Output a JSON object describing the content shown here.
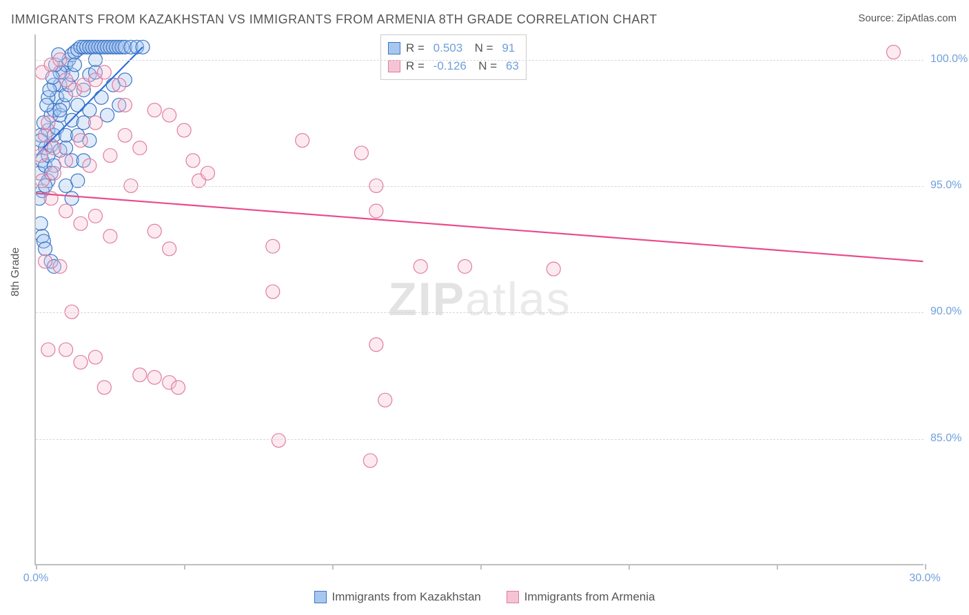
{
  "title": "IMMIGRANTS FROM KAZAKHSTAN VS IMMIGRANTS FROM ARMENIA 8TH GRADE CORRELATION CHART",
  "source_label": "Source:",
  "source_value": "ZipAtlas.com",
  "ylabel": "8th Grade",
  "watermark_bold": "ZIP",
  "watermark_light": "atlas",
  "chart": {
    "type": "scatter",
    "xlim": [
      0,
      30
    ],
    "ylim": [
      80,
      101
    ],
    "xtick_positions": [
      0,
      5,
      10,
      15,
      20,
      25,
      30
    ],
    "xtick_labels": [
      "0.0%",
      "",
      "",
      "",
      "",
      "",
      "30.0%"
    ],
    "ytick_positions": [
      85,
      90,
      95,
      100
    ],
    "ytick_labels": [
      "85.0%",
      "90.0%",
      "95.0%",
      "100.0%"
    ],
    "grid_color": "#d7d7d7",
    "axis_color": "#bfbfbf",
    "background_color": "#ffffff",
    "marker_radius": 10,
    "marker_stroke_width": 1.2,
    "marker_opacity": 0.35,
    "trend_line_width": 2.2
  },
  "series": [
    {
      "id": "kazakhstan",
      "label": "Immigrants from Kazakhstan",
      "fill_color": "#a7c7f0",
      "stroke_color": "#3a75c4",
      "line_color": "#2e6fd6",
      "R": "0.503",
      "N": "91",
      "trend": {
        "x1": 0,
        "y1": 96.2,
        "x2": 3.6,
        "y2": 100.5
      },
      "points": [
        [
          0.1,
          95.5
        ],
        [
          0.2,
          96.0
        ],
        [
          0.3,
          96.5
        ],
        [
          0.15,
          97.0
        ],
        [
          0.4,
          97.2
        ],
        [
          0.5,
          97.8
        ],
        [
          0.6,
          98.0
        ],
        [
          0.7,
          98.5
        ],
        [
          0.8,
          99.0
        ],
        [
          0.9,
          99.5
        ],
        [
          1.0,
          99.8
        ],
        [
          1.1,
          100.0
        ],
        [
          1.2,
          100.2
        ],
        [
          1.3,
          100.3
        ],
        [
          1.4,
          100.4
        ],
        [
          1.5,
          100.5
        ],
        [
          1.6,
          100.5
        ],
        [
          1.7,
          100.5
        ],
        [
          1.8,
          100.5
        ],
        [
          1.9,
          100.5
        ],
        [
          2.0,
          100.5
        ],
        [
          2.1,
          100.5
        ],
        [
          2.2,
          100.5
        ],
        [
          2.3,
          100.5
        ],
        [
          2.4,
          100.5
        ],
        [
          2.5,
          100.5
        ],
        [
          2.6,
          100.5
        ],
        [
          2.7,
          100.5
        ],
        [
          2.8,
          100.5
        ],
        [
          2.9,
          100.5
        ],
        [
          3.0,
          100.5
        ],
        [
          3.2,
          100.5
        ],
        [
          3.4,
          100.5
        ],
        [
          3.6,
          100.5
        ],
        [
          0.3,
          95.8
        ],
        [
          0.4,
          96.2
        ],
        [
          0.5,
          96.6
        ],
        [
          0.6,
          97.0
        ],
        [
          0.7,
          97.3
        ],
        [
          0.8,
          97.8
        ],
        [
          0.9,
          98.2
        ],
        [
          1.0,
          98.6
        ],
        [
          1.1,
          99.0
        ],
        [
          1.2,
          99.4
        ],
        [
          1.3,
          99.8
        ],
        [
          0.2,
          94.8
        ],
        [
          0.4,
          95.2
        ],
        [
          0.6,
          95.8
        ],
        [
          0.8,
          96.4
        ],
        [
          1.0,
          97.0
        ],
        [
          1.2,
          97.6
        ],
        [
          1.4,
          98.2
        ],
        [
          1.6,
          98.8
        ],
        [
          1.8,
          99.4
        ],
        [
          2.0,
          100.0
        ],
        [
          0.1,
          94.5
        ],
        [
          0.3,
          95.0
        ],
        [
          0.5,
          95.5
        ],
        [
          0.15,
          93.5
        ],
        [
          0.2,
          93.0
        ],
        [
          0.25,
          92.8
        ],
        [
          0.3,
          92.5
        ],
        [
          0.5,
          92.0
        ],
        [
          0.6,
          91.8
        ],
        [
          0.8,
          98.0
        ],
        [
          1.0,
          96.5
        ],
        [
          1.2,
          96.0
        ],
        [
          1.4,
          97.0
        ],
        [
          1.6,
          97.5
        ],
        [
          1.8,
          98.0
        ],
        [
          2.0,
          99.5
        ],
        [
          2.2,
          98.5
        ],
        [
          2.4,
          97.8
        ],
        [
          2.6,
          99.0
        ],
        [
          2.8,
          98.2
        ],
        [
          3.0,
          99.2
        ],
        [
          0.4,
          98.5
        ],
        [
          0.6,
          99.0
        ],
        [
          0.8,
          99.5
        ],
        [
          1.0,
          95.0
        ],
        [
          1.2,
          94.5
        ],
        [
          1.4,
          95.2
        ],
        [
          1.6,
          96.0
        ],
        [
          1.8,
          96.8
        ],
        [
          0.15,
          96.8
        ],
        [
          0.25,
          97.5
        ],
        [
          0.35,
          98.2
        ],
        [
          0.45,
          98.8
        ],
        [
          0.55,
          99.3
        ],
        [
          0.65,
          99.8
        ],
        [
          0.75,
          100.2
        ]
      ]
    },
    {
      "id": "armenia",
      "label": "Immigrants from Armenia",
      "fill_color": "#f5c4d4",
      "stroke_color": "#e07ba0",
      "line_color": "#e84b8a",
      "R": "-0.126",
      "N": "63",
      "trend": {
        "x1": 0,
        "y1": 94.7,
        "x2": 30,
        "y2": 92.0
      },
      "points": [
        [
          0.2,
          99.5
        ],
        [
          0.5,
          99.8
        ],
        [
          0.8,
          100.0
        ],
        [
          1.0,
          99.2
        ],
        [
          1.3,
          98.8
        ],
        [
          1.6,
          99.0
        ],
        [
          2.0,
          99.2
        ],
        [
          2.3,
          99.5
        ],
        [
          2.8,
          99.0
        ],
        [
          3.0,
          98.2
        ],
        [
          0.3,
          97.0
        ],
        [
          0.6,
          96.5
        ],
        [
          1.0,
          96.0
        ],
        [
          1.5,
          96.8
        ],
        [
          2.0,
          97.5
        ],
        [
          2.5,
          96.2
        ],
        [
          3.0,
          97.0
        ],
        [
          3.5,
          96.5
        ],
        [
          4.0,
          98.0
        ],
        [
          4.5,
          97.8
        ],
        [
          5.0,
          97.2
        ],
        [
          5.3,
          96.0
        ],
        [
          5.5,
          95.2
        ],
        [
          0.5,
          94.5
        ],
        [
          1.0,
          94.0
        ],
        [
          1.5,
          93.5
        ],
        [
          2.0,
          93.8
        ],
        [
          2.5,
          93.0
        ],
        [
          4.0,
          93.2
        ],
        [
          4.5,
          92.5
        ],
        [
          9.0,
          96.8
        ],
        [
          11.0,
          96.3
        ],
        [
          11.5,
          95.0
        ],
        [
          11.5,
          94.0
        ],
        [
          8.0,
          92.6
        ],
        [
          8.0,
          90.8
        ],
        [
          13.0,
          91.8
        ],
        [
          14.5,
          91.8
        ],
        [
          17.5,
          91.7
        ],
        [
          0.3,
          92.0
        ],
        [
          0.8,
          91.8
        ],
        [
          1.2,
          90.0
        ],
        [
          0.4,
          88.5
        ],
        [
          1.0,
          88.5
        ],
        [
          1.5,
          88.0
        ],
        [
          2.0,
          88.2
        ],
        [
          2.3,
          87.0
        ],
        [
          3.5,
          87.5
        ],
        [
          4.0,
          87.4
        ],
        [
          4.5,
          87.2
        ],
        [
          4.8,
          87.0
        ],
        [
          11.5,
          88.7
        ],
        [
          11.8,
          86.5
        ],
        [
          8.2,
          84.9
        ],
        [
          11.3,
          84.1
        ],
        [
          29.0,
          100.3
        ],
        [
          0.2,
          95.2
        ],
        [
          0.6,
          95.5
        ],
        [
          1.8,
          95.8
        ],
        [
          3.2,
          95.0
        ],
        [
          5.8,
          95.5
        ],
        [
          0.15,
          96.2
        ],
        [
          0.4,
          97.5
        ]
      ]
    }
  ],
  "bottom_legend": [
    {
      "series": "kazakhstan"
    },
    {
      "series": "armenia"
    }
  ]
}
